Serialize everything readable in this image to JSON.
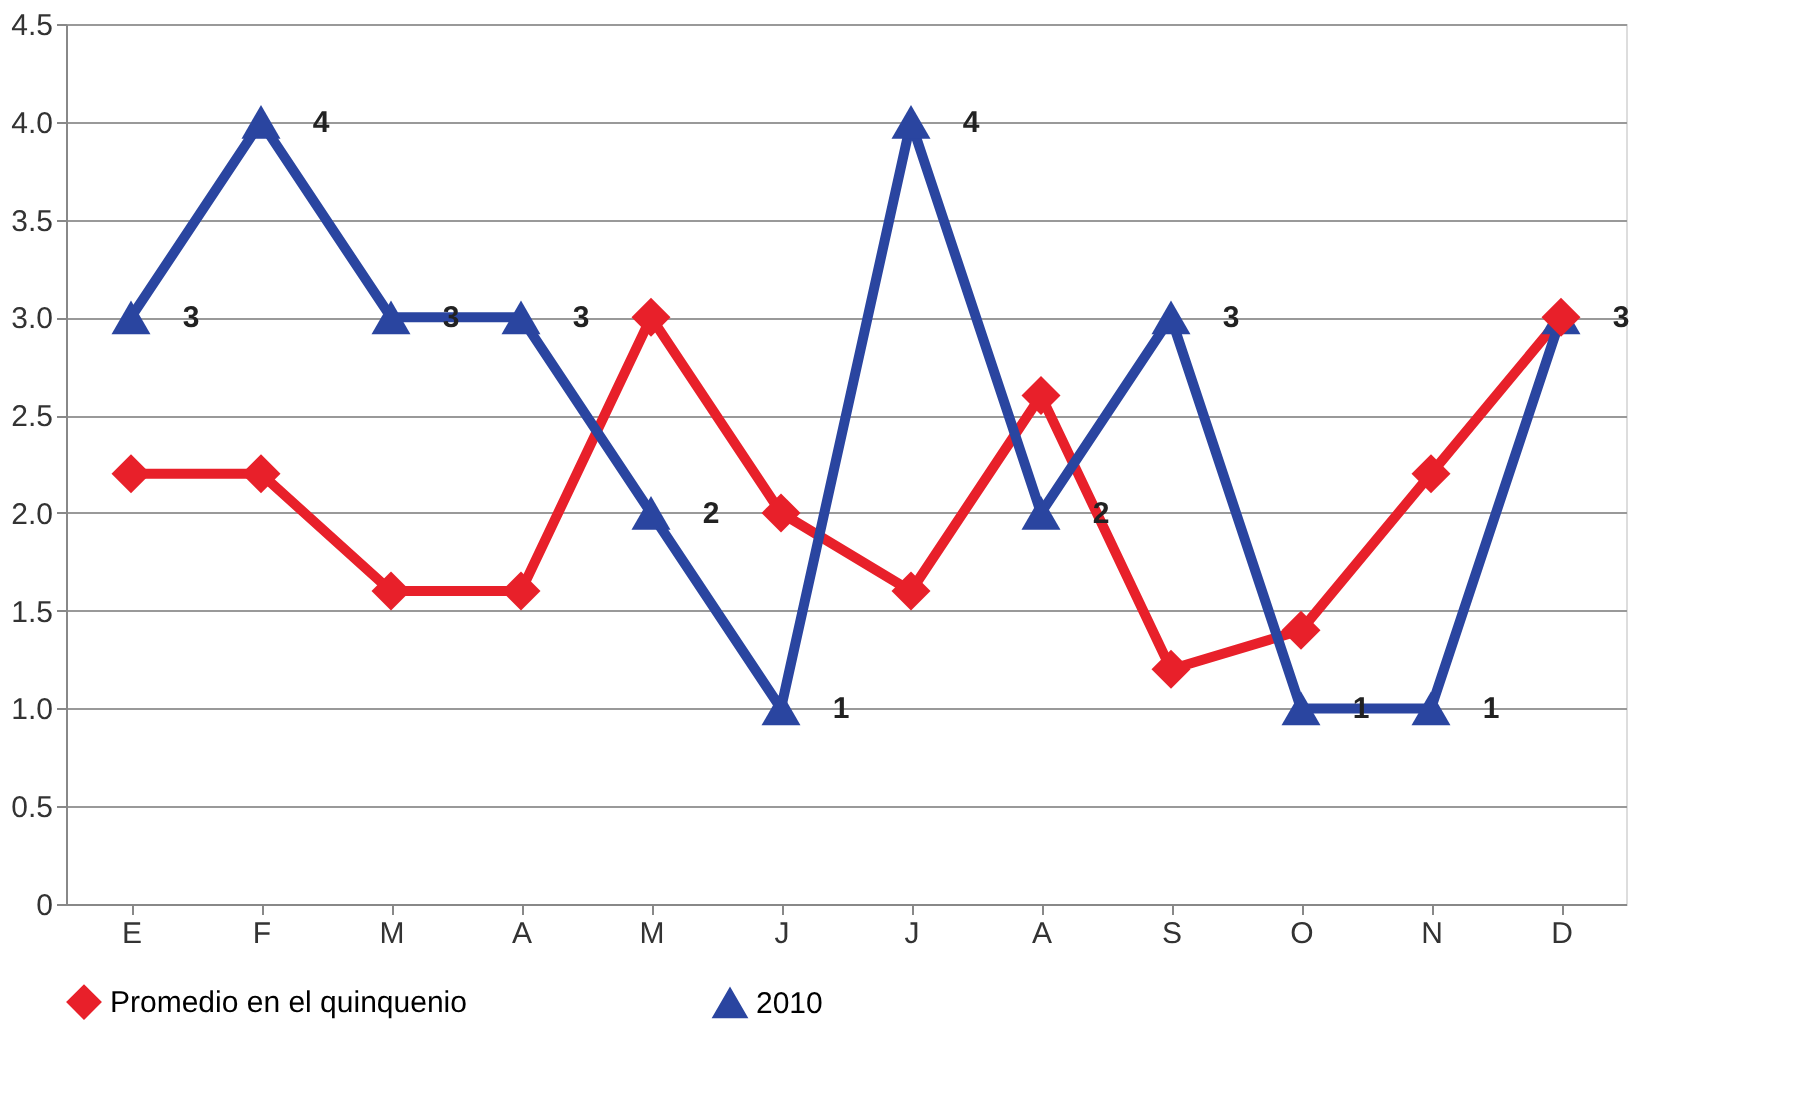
{
  "chart_data": {
    "type": "line",
    "categories": [
      "E",
      "F",
      "M",
      "A",
      "M",
      "J",
      "J",
      "A",
      "S",
      "O",
      "N",
      "D"
    ],
    "series": [
      {
        "name": "Promedio en el quinquenio",
        "color": "#e8202a",
        "marker": "diamond",
        "values": [
          2.2,
          2.2,
          1.6,
          1.6,
          3.0,
          2.0,
          1.6,
          2.6,
          1.2,
          1.4,
          2.2,
          3.0
        ]
      },
      {
        "name": "2010",
        "color": "#2a45a0",
        "marker": "triangle",
        "values": [
          3,
          4,
          3,
          3,
          2,
          1,
          4,
          2,
          3,
          1,
          1,
          3
        ],
        "value_labels": [
          "3",
          "4",
          "3",
          "3",
          "2",
          "1",
          "4",
          "2",
          "3",
          "1",
          "1",
          "3"
        ]
      }
    ],
    "ylim": [
      0,
      4.5
    ],
    "yticks": [
      0,
      {
        "value": 0.5,
        "label": "0.5"
      },
      {
        "value": 1,
        "label": "1.0"
      },
      {
        "value": 1.5,
        "label": "1.5"
      },
      {
        "value": 2,
        "label": "2.0"
      },
      {
        "value": 2.5,
        "label": "2.5"
      },
      {
        "value": 3,
        "label": "3.0"
      },
      {
        "value": 3.5,
        "label": "3.5"
      },
      {
        "value": 4,
        "label": "4.0"
      },
      {
        "value": 4.5,
        "label": "4.5"
      }
    ],
    "grid": "y",
    "legend": "bottom",
    "line_style": "solid"
  }
}
